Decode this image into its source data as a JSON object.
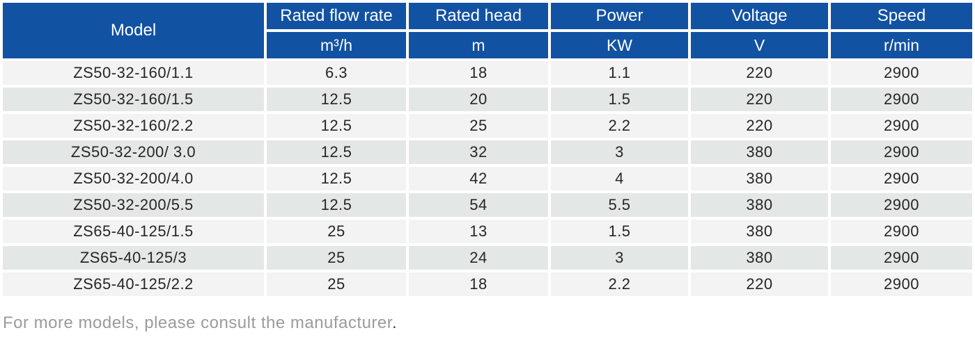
{
  "table": {
    "columns": [
      {
        "label": "Model",
        "unit": ""
      },
      {
        "label": "Rated flow rate",
        "unit": "m³/h"
      },
      {
        "label": "Rated head",
        "unit": "m"
      },
      {
        "label": "Power",
        "unit": "KW"
      },
      {
        "label": "Voltage",
        "unit": "V"
      },
      {
        "label": "Speed",
        "unit": "r/min"
      }
    ],
    "rows": [
      [
        "ZS50-32-160/1.1",
        "6.3",
        "18",
        "1.1",
        "220",
        "2900"
      ],
      [
        "ZS50-32-160/1.5",
        "12.5",
        "20",
        "1.5",
        "220",
        "2900"
      ],
      [
        "ZS50-32-160/2.2",
        "12.5",
        "25",
        "2.2",
        "220",
        "2900"
      ],
      [
        "ZS50-32-200/ 3.0",
        "12.5",
        "32",
        "3",
        "380",
        "2900"
      ],
      [
        "ZS50-32-200/4.0",
        "12.5",
        "42",
        "4",
        "380",
        "2900"
      ],
      [
        "ZS50-32-200/5.5",
        "12.5",
        "54",
        "5.5",
        "380",
        "2900"
      ],
      [
        "ZS65-40-125/1.5",
        "25",
        "13",
        "1.5",
        "380",
        "2900"
      ],
      [
        "ZS65-40-125/3",
        "25",
        "24",
        "3",
        "380",
        "2900"
      ],
      [
        "ZS65-40-125/2.2",
        "25",
        "18",
        "2.2",
        "220",
        "2900"
      ]
    ]
  },
  "footer": {
    "note": "For more models, please consult the manufacturer",
    "period": "."
  },
  "colors": {
    "header_bg": "#1252a2",
    "row_odd": "#f3f3f3",
    "row_even": "#e3e7e5",
    "cell_text": "#262626",
    "footer_text": "#9b9b9b",
    "footer_period": "#2e3b50"
  }
}
